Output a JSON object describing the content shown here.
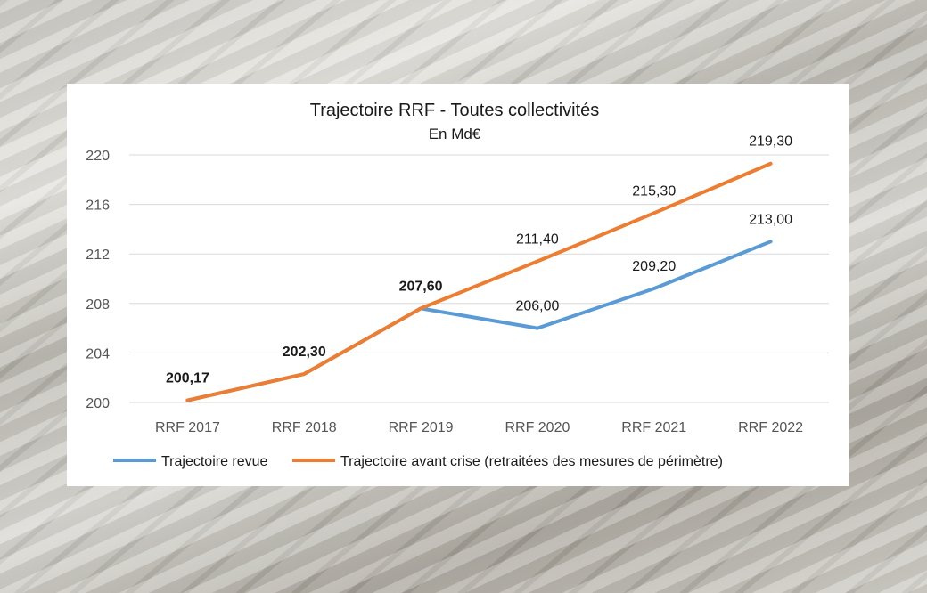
{
  "chart_data": {
    "type": "line",
    "title": "Trajectoire RRF - Toutes collectivités",
    "subtitle": "En Md€",
    "categories": [
      "RRF 2017",
      "RRF 2018",
      "RRF 2019",
      "RRF 2020",
      "RRF 2021",
      "RRF 2022"
    ],
    "ylim": [
      200,
      220
    ],
    "yticks": [
      200,
      204,
      208,
      212,
      216,
      220
    ],
    "grid": true,
    "legend_position": "bottom",
    "series": [
      {
        "name": "Trajectoire revue",
        "color": "#5B9BD5",
        "values": [
          200.17,
          202.3,
          207.6,
          206.0,
          209.2,
          213.0
        ],
        "labels": [
          "",
          "",
          "",
          "206,00",
          "209,20",
          "213,00"
        ]
      },
      {
        "name": "Trajectoire avant crise (retraitées des mesures de périmètre)",
        "color": "#ED7D31",
        "values": [
          200.17,
          202.3,
          207.6,
          211.4,
          215.3,
          219.3
        ],
        "labels": [
          "200,17",
          "202,30",
          "207,60",
          "211,40",
          "215,30",
          "219,30"
        ]
      }
    ]
  }
}
